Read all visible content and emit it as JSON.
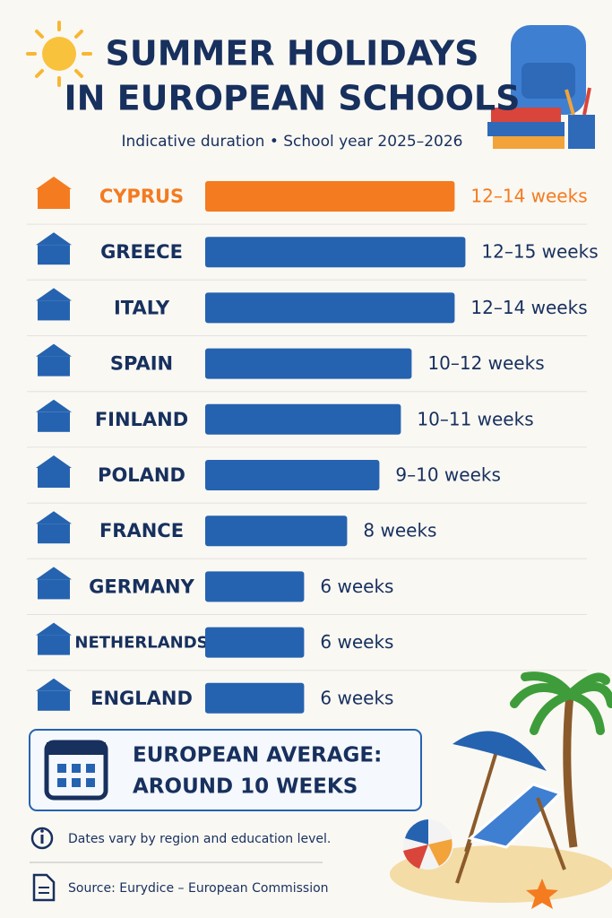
{
  "header": {
    "title_lines": [
      "SUMMER HOLIDAYS",
      "IN EUROPEAN SCHOOLS"
    ],
    "subtitle": "Indicative duration • School year 2025–2026"
  },
  "chart_data": {
    "type": "bar",
    "orientation": "horizontal",
    "categories": [
      "CYPRUS",
      "GREECE",
      "ITALY",
      "SPAIN",
      "FINLAND",
      "POLAND",
      "FRANCE",
      "GERMANY",
      "NETHERLANDS",
      "ENGLAND"
    ],
    "values": [
      13,
      13.5,
      13,
      11,
      10.5,
      9.5,
      8,
      6,
      6,
      6
    ],
    "value_labels": [
      "12–14 weeks",
      "12–15 weeks",
      "12–14 weeks",
      "10–12 weeks",
      "10–11 weeks",
      "9–10 weeks",
      "8 weeks",
      "6 weeks",
      "6 weeks",
      "6 weeks"
    ],
    "color": "#2563b0",
    "colors": [
      "#f47b20",
      "#2563b0",
      "#2563b0",
      "#2563b0",
      "#2563b0",
      "#2563b0",
      "#2563b0",
      "#2563b0",
      "#2563b0",
      "#2563b0"
    ],
    "xlim": [
      1.4,
      13.4
    ]
  },
  "summary": {
    "lines": [
      "EUROPEAN AVERAGE:",
      "AROUND 10 WEEKS"
    ]
  },
  "notes": [
    "Dates vary by region and education level.",
    "Source: Eurydice – European Commission"
  ]
}
